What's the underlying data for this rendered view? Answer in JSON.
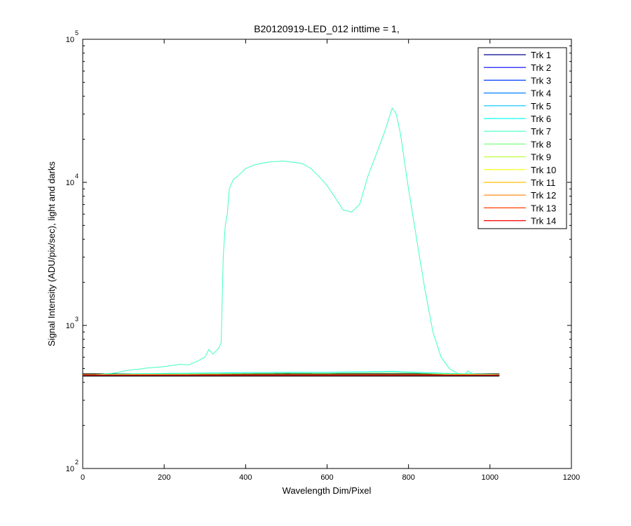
{
  "chart_data": {
    "type": "line",
    "title": "B20120919-LED_012 inttime = 1,",
    "xlabel": "Wavelength Dim/Pixel",
    "ylabel": "Signal Intensity (ADU/pix/sec), light and darks",
    "xlim": [
      0,
      1200
    ],
    "ylim": [
      100,
      100000
    ],
    "yscale": "log",
    "x_ticks": [
      "0",
      "200",
      "400",
      "600",
      "800",
      "1000",
      "1200"
    ],
    "x_tick_values": [
      0,
      200,
      400,
      600,
      800,
      1000,
      1200
    ],
    "y_ticks": [
      {
        "base": "10",
        "exp": "2",
        "value": 100
      },
      {
        "base": "10",
        "exp": "3",
        "value": 1000
      },
      {
        "base": "10",
        "exp": "4",
        "value": 10000
      },
      {
        "base": "10",
        "exp": "5",
        "value": 100000
      }
    ],
    "grid": false,
    "legend_position": "top-right",
    "series": [
      {
        "name": "Trk 1",
        "color": "#00008f",
        "x": [
          0,
          1023
        ],
        "y": [
          448,
          448
        ]
      },
      {
        "name": "Trk 2",
        "color": "#0000ff",
        "x": [
          0,
          1023
        ],
        "y": [
          450,
          450
        ]
      },
      {
        "name": "Trk 3",
        "color": "#0040ff",
        "x": [
          0,
          1023
        ],
        "y": [
          451,
          451
        ]
      },
      {
        "name": "Trk 4",
        "color": "#0080ff",
        "x": [
          0,
          1023
        ],
        "y": [
          452,
          452
        ]
      },
      {
        "name": "Trk 5",
        "color": "#00c0ff",
        "x": [
          0,
          1023
        ],
        "y": [
          452,
          452
        ]
      },
      {
        "name": "Trk 6",
        "color": "#10ffef",
        "x": [
          0,
          100,
          200,
          300,
          400,
          500,
          600,
          700,
          760,
          800,
          900,
          1023
        ],
        "y": [
          452,
          458,
          462,
          465,
          468,
          470,
          470,
          475,
          478,
          472,
          462,
          455
        ]
      },
      {
        "name": "Trk 7",
        "color": "#40ffbf",
        "x": [
          0,
          40,
          80,
          100,
          120,
          140,
          160,
          180,
          200,
          220,
          240,
          260,
          280,
          300,
          310,
          320,
          335,
          340,
          345,
          350,
          355,
          360,
          370,
          380,
          400,
          420,
          440,
          460,
          480,
          490,
          500,
          520,
          540,
          560,
          580,
          600,
          620,
          640,
          660,
          680,
          700,
          720,
          740,
          760,
          770,
          780,
          800,
          820,
          840,
          860,
          880,
          900,
          920,
          940,
          945,
          960,
          1000,
          1023
        ],
        "y": [
          450,
          455,
          465,
          480,
          490,
          495,
          505,
          510,
          515,
          525,
          535,
          530,
          560,
          600,
          680,
          630,
          700,
          760,
          3000,
          5000,
          6000,
          9000,
          10500,
          11000,
          12500,
          13200,
          13600,
          13900,
          14000,
          14100,
          14000,
          13800,
          13500,
          12500,
          11000,
          9500,
          7800,
          6400,
          6200,
          7000,
          11000,
          15500,
          22000,
          33000,
          30000,
          22000,
          9000,
          4000,
          1800,
          900,
          600,
          500,
          462,
          458,
          480,
          455,
          452,
          452
        ]
      },
      {
        "name": "Trk 8",
        "color": "#80ff80",
        "x": [
          0,
          100,
          200,
          300,
          400,
          500,
          600,
          700,
          760,
          800,
          900,
          1023
        ],
        "y": [
          452,
          455,
          458,
          460,
          462,
          464,
          463,
          467,
          470,
          466,
          458,
          454
        ]
      },
      {
        "name": "Trk 9",
        "color": "#bfff40",
        "x": [
          0,
          1023
        ],
        "y": [
          452,
          452
        ]
      },
      {
        "name": "Trk 10",
        "color": "#ffff00",
        "x": [
          0,
          1023
        ],
        "y": [
          453,
          453
        ]
      },
      {
        "name": "Trk 11",
        "color": "#ffbf00",
        "x": [
          0,
          1023
        ],
        "y": [
          452,
          452
        ]
      },
      {
        "name": "Trk 12",
        "color": "#ff8000",
        "x": [
          0,
          1023
        ],
        "y": [
          451,
          451
        ]
      },
      {
        "name": "Trk 13",
        "color": "#ff4000",
        "x": [
          0,
          1023
        ],
        "y": [
          450,
          450
        ]
      },
      {
        "name": "Trk 14",
        "color": "#ff0000",
        "x": [
          0,
          1023
        ],
        "y": [
          449,
          449
        ]
      }
    ],
    "dark_series": {
      "color": "#000000",
      "x": [
        0,
        1023
      ],
      "y": [
        445,
        445
      ],
      "jitter_low": 430,
      "jitter_high": 462
    }
  }
}
